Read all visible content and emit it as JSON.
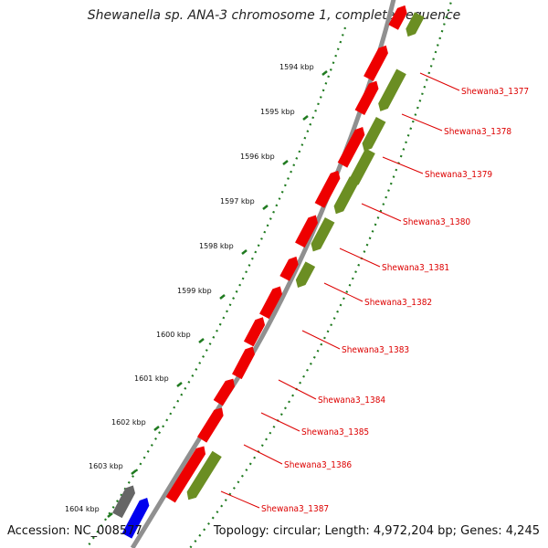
{
  "title": "Shewanella sp. ANA-3 chromosome 1, complete sequence",
  "footer": {
    "accession": "Accession: NC_008577",
    "topology": "Topology: circular; Length: 4,972,204 bp; Genes: 4,245"
  },
  "colors": {
    "backbone": "#8a8a8a",
    "cds_forward": "#ee0000",
    "cds_reverse": "#6b8e23",
    "ticks": "#1f7a1f",
    "labels": "#dd0000",
    "other_gene_gray": "#666666",
    "other_gene_blue": "#0000ee"
  },
  "kbp_labels": [
    "1594 kbp",
    "1595 kbp",
    "1596 kbp",
    "1597 kbp",
    "1598 kbp",
    "1599 kbp",
    "1600 kbp",
    "1601 kbp",
    "1602 kbp",
    "1603 kbp",
    "1604 kbp"
  ],
  "gene_labels": [
    "Shewana3_1377",
    "Shewana3_1378",
    "Shewana3_1379",
    "Shewana3_1380",
    "Shewana3_1381",
    "Shewana3_1382",
    "Shewana3_1383",
    "Shewana3_1384",
    "Shewana3_1385",
    "Shewana3_1386",
    "Shewana3_1387"
  ]
}
